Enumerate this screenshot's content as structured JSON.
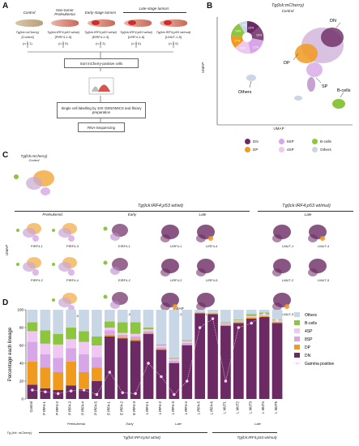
{
  "panel_a": {
    "letter": "A",
    "groups": [
      {
        "label": "Control",
        "fish": "Tg(lck:mCherry)",
        "code": "[Control]",
        "n": "(n = 1)"
      },
      {
        "label": "Non-tumor Preleukemia",
        "fish": "Tg(lck:IRF4;p53 wt/wt)",
        "code": "[PIRF4-1-5]",
        "n": "(n = 5)"
      },
      {
        "label": "Early-stage tumors",
        "fish": "Tg(lck:IRF4;p53 wt/wt)",
        "code": "[EIRF4-1-3]",
        "n": "(n = 3)"
      },
      {
        "label": "Late-stage tumors",
        "fish": "Tg(lck:IRF4;p53 wt/wt)",
        "code": "[LIRF4-1-6]",
        "n": "(n = 6)"
      },
      {
        "label": "",
        "fish": "Tg(lck:IRF4;p53 wt/mut)",
        "code": "[LMUT-1-5]",
        "n": "(n = 5)"
      }
    ],
    "step1": "Sort mCherry-positive cells",
    "step2": "Single cell labelling by 10X GENOMICS and library preparation",
    "step3": "RNA-Sequencing"
  },
  "panel_b": {
    "letter": "B",
    "title": "Tg(lck:mCherry)",
    "subtitle": "Control",
    "xlabel": "UMAP",
    "ylabel": "UMAP",
    "cluster_labels": {
      "dn": "DN",
      "dp": "DP",
      "sp": "SP",
      "others": "Others",
      "bcells": "B-cells"
    },
    "pie_labels": [
      "12%",
      "15%",
      "22%",
      "11%",
      "17%",
      "14%",
      "9%"
    ],
    "legend": [
      {
        "name": "DN",
        "color": "#6b2a63"
      },
      {
        "name": "DP",
        "color": "#f09a1e"
      },
      {
        "name": "8SP",
        "color": "#d7a6e6"
      },
      {
        "name": "4SP",
        "color": "#f0c7f0"
      },
      {
        "name": "B-cells",
        "color": "#8cc63f"
      },
      {
        "name": "Others",
        "color": "#c9d6e6"
      }
    ]
  },
  "panel_c": {
    "letter": "C",
    "control_title": "Tg(lck:mCherry)",
    "control_subtitle": "Control",
    "wt_title": "Tg(lck:IRF4;p53 wt/wt)",
    "mut_title": "Tg(lck:IRF4;p53 wt/mut)",
    "stages": [
      "Preleukemic",
      "Early",
      "Late",
      "Late"
    ],
    "xlabel": "UMAP",
    "ylabel": "UMAP",
    "thumbs": {
      "pre": [
        "PIRF4-1",
        "PIRF4-3",
        "PIRF4-2",
        "PIRF4-4",
        "PIRF4-5"
      ],
      "early": [
        "EIRF4-1",
        "EIRF4-2",
        "EIRF4-3"
      ],
      "late": [
        "LIRF4-1",
        "LIRF4-4",
        "LIRF4-2",
        "LIRF4-5",
        "LIRF4-3",
        "LIRF4-6"
      ],
      "mut": [
        "LMUT-1",
        "LMUT-4",
        "LMUT-2",
        "LMUT-5",
        "LMUT-3"
      ]
    }
  },
  "panel_d": {
    "letter": "D",
    "group_labels": [
      "Preleukemia",
      "Early",
      "Late",
      "Late"
    ],
    "bottom_labels": [
      "Tg (lck: mCherry)",
      "Tg(lck:IRF4;p53 wt/wt)",
      "Tg(lck:IRF4;p53 wt/mut)"
    ],
    "gamma_label": "Gamma positive"
  },
  "chart_data": {
    "type": "bar",
    "stacked": true,
    "ylabel": "Percentage each lineage",
    "ylim": [
      0,
      100
    ],
    "yticks": [
      0,
      20,
      40,
      60,
      80,
      100
    ],
    "categories": [
      "Control",
      "P IRF4-1",
      "P IRF4-2",
      "P IRF4-3",
      "P IRF4-4",
      "P IRF4-5",
      "E IRF4-1",
      "E IRF4-2",
      "E IRF4-3",
      "L IRF4-1",
      "L IRF4-2",
      "L IRF4-3",
      "L IRF4-4",
      "L IRF4-5",
      "L IRF4-6",
      "L MUT1",
      "L MUT2",
      "L MUT3",
      "L MUT4",
      "L MUT5"
    ],
    "series": [
      {
        "name": "DN",
        "color": "#6b2a63",
        "values": [
          16,
          12,
          10,
          15,
          11,
          20,
          70,
          68,
          65,
          73,
          55,
          40,
          60,
          96,
          95,
          82,
          85,
          90,
          92,
          85
        ]
      },
      {
        "name": "DP",
        "color": "#f09a1e",
        "values": [
          26,
          23,
          20,
          27,
          19,
          15,
          2,
          1,
          2,
          1,
          1,
          1,
          1,
          1,
          1,
          1,
          1,
          1,
          1,
          1
        ]
      },
      {
        "name": "8SP",
        "color": "#d7a6e6",
        "values": [
          22,
          15,
          16,
          15,
          20,
          12,
          5,
          3,
          3,
          2,
          2,
          2,
          2,
          0,
          0,
          1,
          1,
          1,
          1,
          1
        ]
      },
      {
        "name": "4SP",
        "color": "#f0c7f0",
        "values": [
          12,
          12,
          15,
          10,
          14,
          13,
          3,
          2,
          3,
          2,
          2,
          2,
          2,
          0,
          0,
          1,
          1,
          1,
          1,
          1
        ]
      },
      {
        "name": "B-cells",
        "color": "#8cc63f",
        "values": [
          10,
          15,
          12,
          13,
          12,
          10,
          7,
          12,
          13,
          2,
          1,
          1,
          1,
          0,
          0,
          1,
          1,
          2,
          2,
          1
        ]
      },
      {
        "name": "Others",
        "color": "#c9d6e6",
        "values": [
          14,
          23,
          27,
          20,
          24,
          30,
          13,
          14,
          14,
          20,
          39,
          54,
          34,
          3,
          4,
          14,
          11,
          5,
          3,
          11
        ]
      }
    ],
    "gamma_positive": [
      10,
      8,
      6,
      9,
      10,
      5,
      30,
      7,
      6,
      40,
      25,
      5,
      20,
      80,
      90,
      20,
      80,
      85,
      95,
      88
    ],
    "legend": [
      "Others",
      "B-cells",
      "4SP",
      "8SP",
      "DP",
      "DN",
      "Gamma positive"
    ]
  }
}
